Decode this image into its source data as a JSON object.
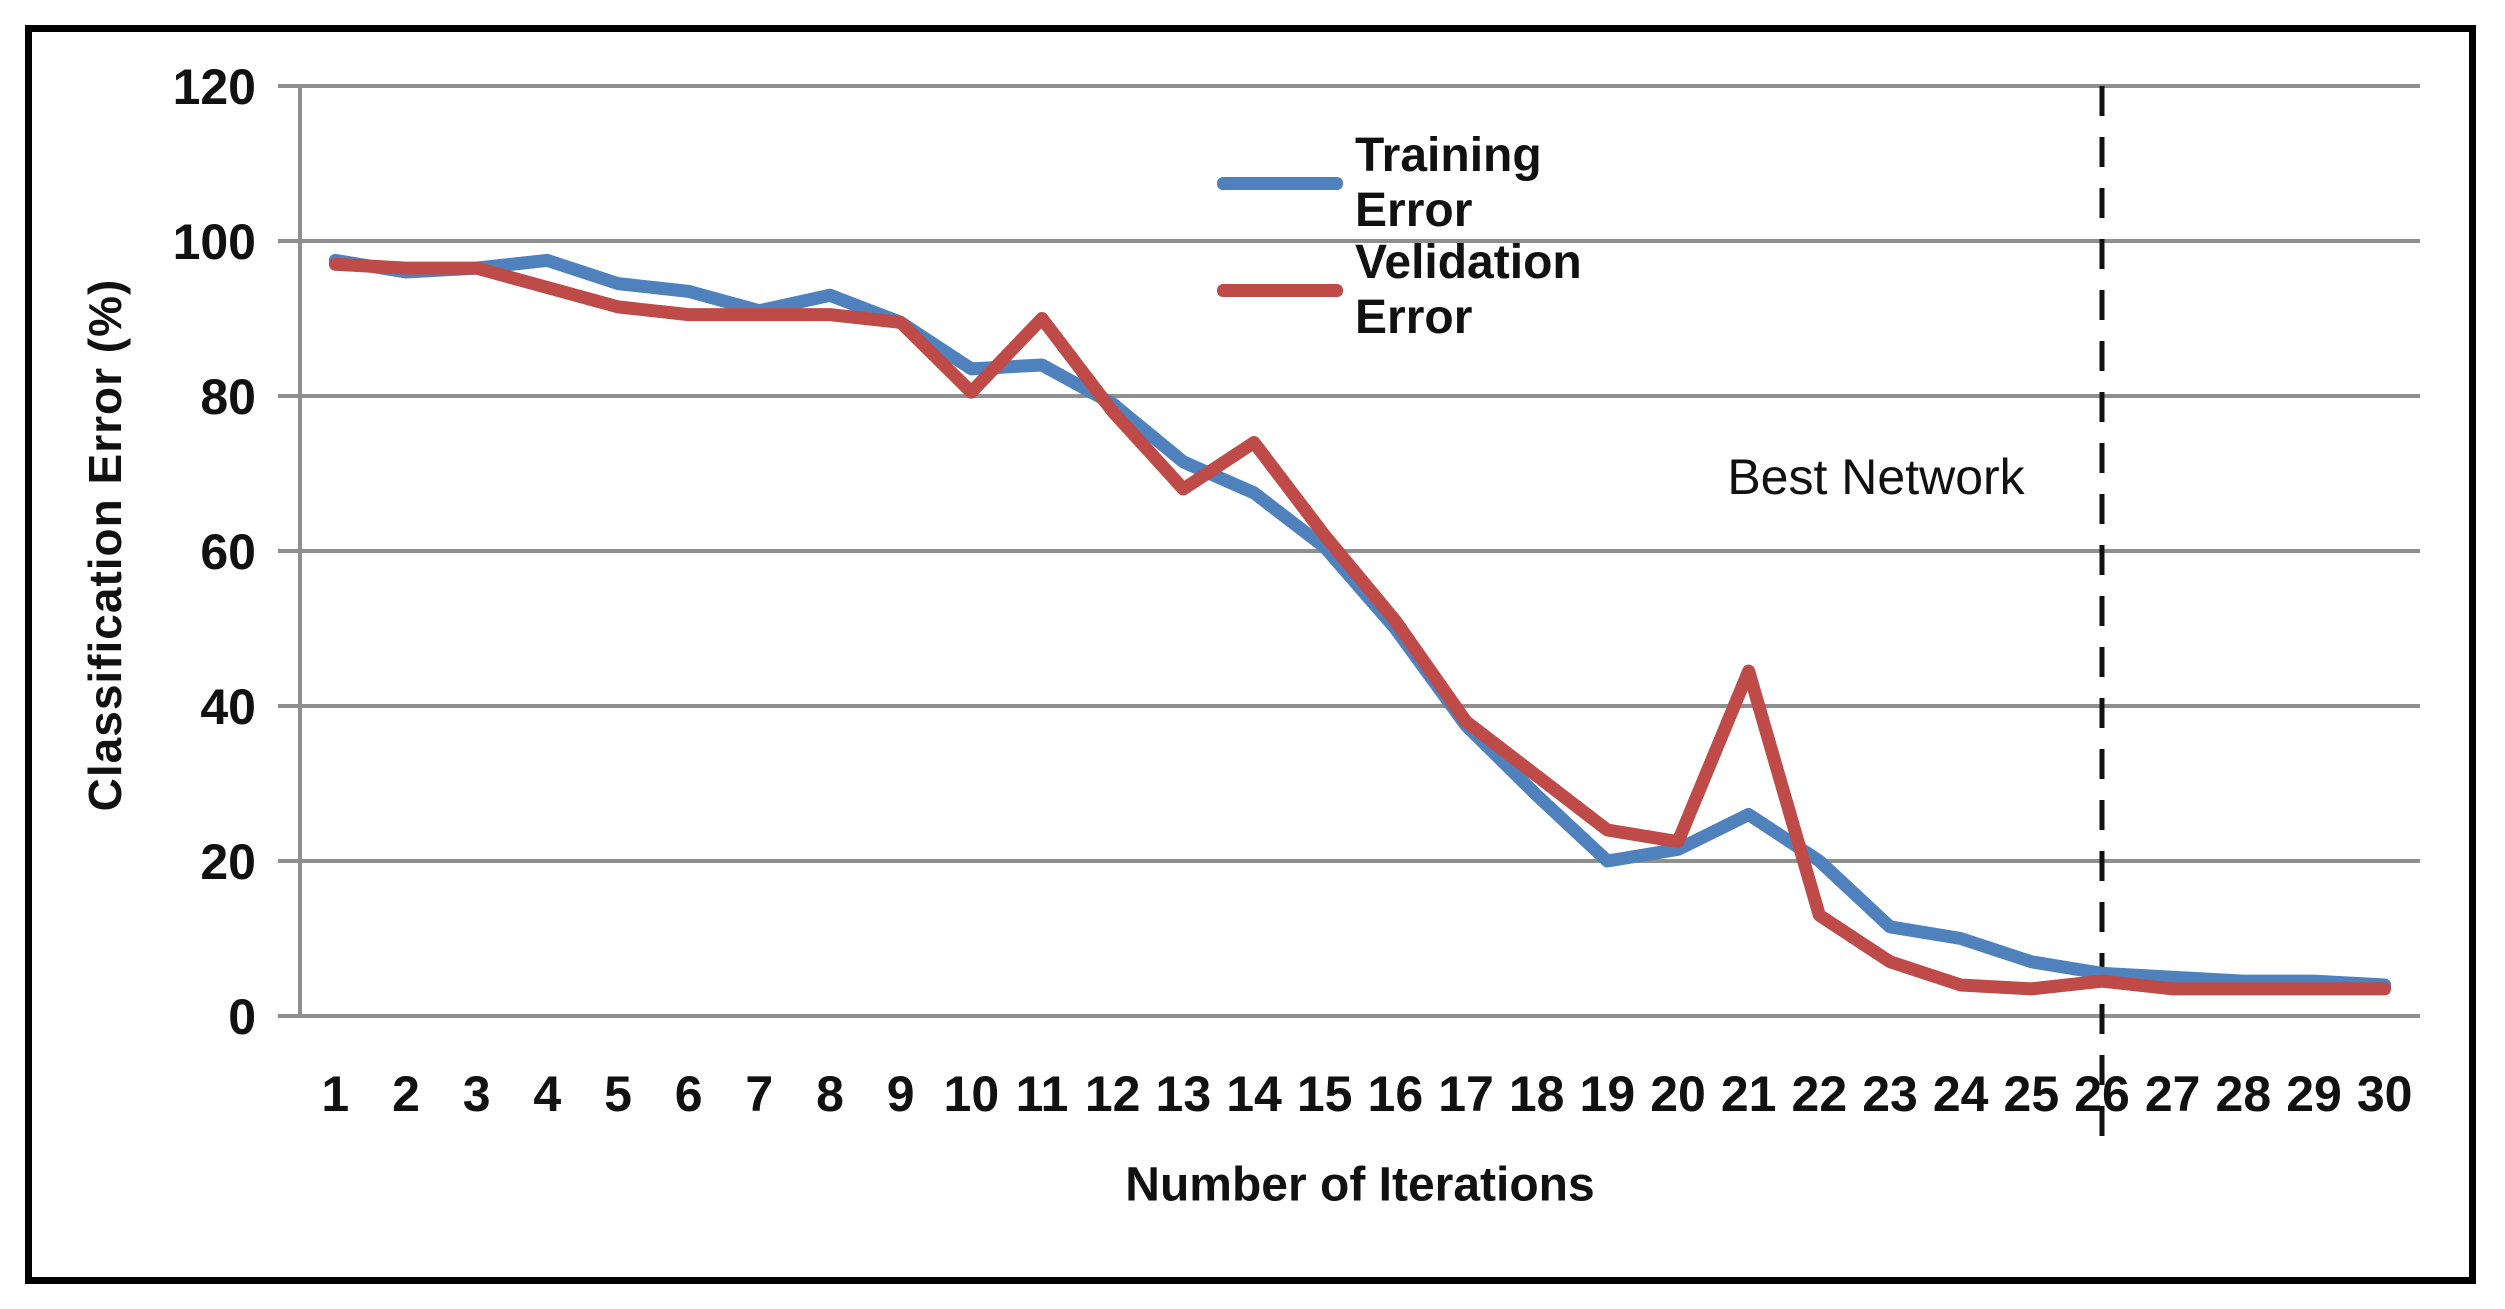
{
  "chart_data": {
    "type": "line",
    "title": "",
    "xlabel": "Number of Iterations",
    "ylabel": "Classification  Error (%)",
    "categories": [
      1,
      2,
      3,
      4,
      5,
      6,
      7,
      8,
      9,
      10,
      11,
      12,
      13,
      14,
      15,
      16,
      17,
      18,
      19,
      20,
      21,
      22,
      23,
      24,
      25,
      26,
      27,
      28,
      29,
      30
    ],
    "ylim": [
      0,
      120
    ],
    "yticks": [
      0,
      20,
      40,
      60,
      80,
      100,
      120
    ],
    "grid": "horizontal",
    "legend_position": "inside-top-center",
    "series": [
      {
        "name": "Training Error",
        "color": "#4F81BD",
        "values": [
          97.5,
          96,
          96.5,
          97.5,
          94.5,
          93.5,
          91,
          93,
          89.5,
          83.5,
          84,
          79,
          71.5,
          67.5,
          60.5,
          50,
          37.5,
          28.5,
          20,
          21.5,
          26,
          20,
          11.5,
          10,
          7,
          5.5,
          5,
          4.5,
          4.5,
          4
        ]
      },
      {
        "name": "Velidation Error",
        "color": "#BE4B48",
        "values": [
          97,
          96.5,
          96.5,
          94,
          91.5,
          90.5,
          90.5,
          90.5,
          89.5,
          80.5,
          90,
          78,
          68,
          74,
          62,
          51,
          38,
          31,
          24,
          22.5,
          44.5,
          13,
          7,
          4,
          3.5,
          4.5,
          3.5,
          3.5,
          3.5,
          3.5
        ]
      }
    ],
    "annotations": {
      "best_network": {
        "label": "Best Network",
        "iteration": 26,
        "line_style": "dashed"
      }
    }
  },
  "colors": {
    "gridline": "#8F8F8F",
    "axis_line": "#8F8F8F",
    "dashed_line": "#111111",
    "text": "#111111",
    "background": "#FFFFFF",
    "border": "#000000"
  }
}
